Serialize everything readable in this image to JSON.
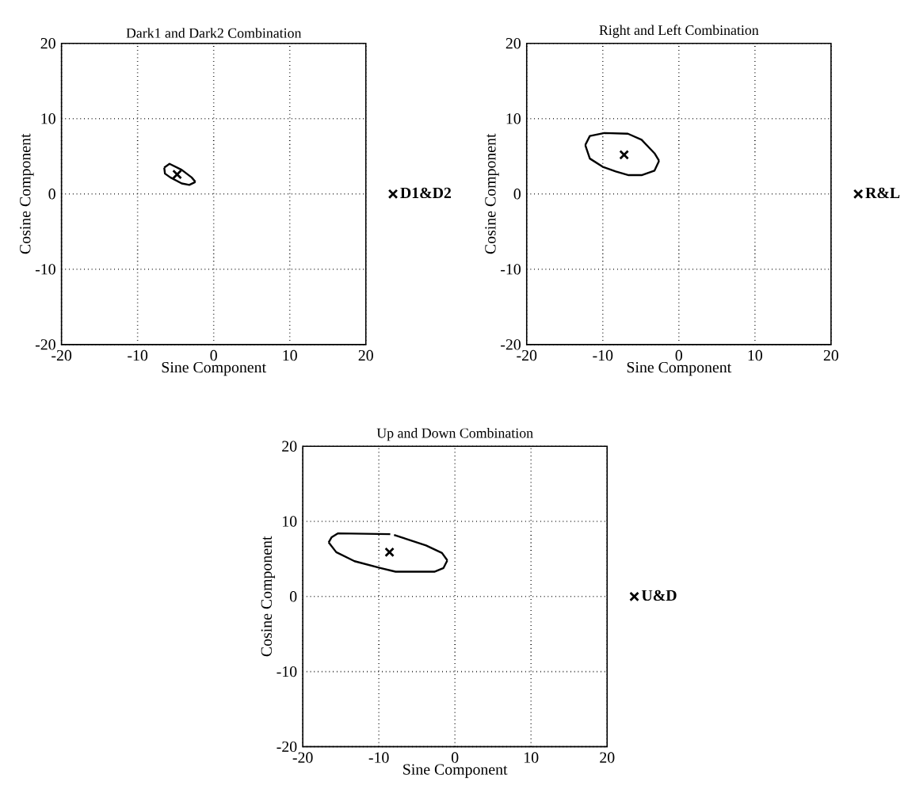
{
  "chart_data": [
    {
      "type": "scatter",
      "title": "Dark1 and Dark2 Combination",
      "xlabel": "Sine Component",
      "ylabel": "Cosine Component",
      "xlim": [
        -20,
        20
      ],
      "ylim": [
        -20,
        20
      ],
      "xticks": [
        -20,
        -10,
        0,
        10,
        20
      ],
      "yticks": [
        -20,
        -10,
        0,
        10,
        20
      ],
      "grid": true,
      "legend": "right",
      "series": [
        {
          "type": "line",
          "color": "#000000",
          "x": [
            -6.5,
            -5.8,
            -4.2,
            -2.9,
            -2.4
          ],
          "values": [
            3.5,
            4.0,
            3.2,
            2.2,
            1.6
          ]
        },
        {
          "type": "line",
          "color": "#000000",
          "x": [
            -6.5,
            -6.4,
            -5.7,
            -4.2,
            -3.2,
            -2.4
          ],
          "values": [
            3.5,
            2.7,
            2.2,
            1.4,
            1.2,
            1.6
          ]
        },
        {
          "type": "scatter",
          "name": "D1&D2",
          "color": "#000000",
          "marker": "cross",
          "x": [
            -4.8
          ],
          "values": [
            2.6
          ]
        }
      ]
    },
    {
      "type": "scatter",
      "title": "Right and Left Combination",
      "xlabel": "Sine Component",
      "ylabel": "Cosine Component",
      "xlim": [
        -20,
        20
      ],
      "ylim": [
        -20,
        20
      ],
      "xticks": [
        -20,
        -10,
        0,
        10,
        20
      ],
      "yticks": [
        -20,
        -10,
        0,
        10,
        20
      ],
      "grid": true,
      "legend": "right",
      "series": [
        {
          "type": "line",
          "color": "#000000",
          "x": [
            -12.3,
            -11.7,
            -9.8,
            -6.7,
            -4.9,
            -3.2,
            -2.6
          ],
          "values": [
            6.5,
            7.7,
            8.1,
            8.0,
            7.2,
            5.4,
            4.4
          ]
        },
        {
          "type": "line",
          "color": "#000000",
          "x": [
            -12.3,
            -11.7,
            -10.0,
            -8.3,
            -6.6,
            -4.9,
            -3.2,
            -2.6
          ],
          "values": [
            6.5,
            4.7,
            3.6,
            3.0,
            2.5,
            2.5,
            3.1,
            4.4
          ]
        },
        {
          "type": "scatter",
          "name": "R&L",
          "color": "#000000",
          "marker": "cross",
          "x": [
            -7.2
          ],
          "values": [
            5.2
          ]
        }
      ]
    },
    {
      "type": "scatter",
      "title": "Up and Down Combination",
      "xlabel": "Sine Component",
      "ylabel": "Cosine Component",
      "xlim": [
        -20,
        20
      ],
      "ylim": [
        -20,
        20
      ],
      "xticks": [
        -20,
        -10,
        0,
        10,
        20
      ],
      "yticks": [
        -20,
        -10,
        0,
        10,
        20
      ],
      "grid": true,
      "legend": "right",
      "series": [
        {
          "type": "line",
          "color": "#000000",
          "x": [
            -16.6,
            -16.2,
            -15.4,
            -8.5,
            -8.3,
            -8.0,
            -6.5,
            -3.8,
            -1.7,
            -1.0
          ],
          "values": [
            7.2,
            7.9,
            8.4,
            8.3,
            null,
            8.2,
            7.7,
            6.8,
            5.8,
            4.8
          ]
        },
        {
          "type": "line",
          "color": "#000000",
          "x": [
            -16.6,
            -15.6,
            -13.2,
            -9.8,
            -7.8,
            -2.7,
            -1.5,
            -1.0
          ],
          "values": [
            7.2,
            5.9,
            4.7,
            3.8,
            3.3,
            3.3,
            3.8,
            4.8
          ]
        },
        {
          "type": "scatter",
          "name": "U&D",
          "color": "#000000",
          "marker": "cross",
          "x": [
            -8.6
          ],
          "values": [
            5.9
          ]
        }
      ]
    }
  ]
}
